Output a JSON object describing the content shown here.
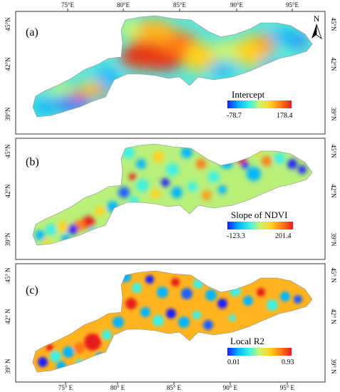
{
  "figure": {
    "x_ticks": [
      "75°E",
      "80°E",
      "85°E",
      "90°E",
      "95°E"
    ],
    "x_ticks_bottom": [
      "75° E",
      "80° E",
      "85° E",
      "90° E",
      "95° E"
    ],
    "lat_ticks_a": [
      "45°N",
      "42°N",
      "39°N"
    ],
    "lat_ticks_b": [
      "45°N",
      "42°N",
      "39°N"
    ],
    "lat_ticks_c": [
      "45° N",
      "42° N",
      "39° N"
    ],
    "north_label": "N"
  },
  "panels": [
    {
      "label": "(a)",
      "legend_title": "Intercept",
      "legend_min": "-78.7",
      "legend_max": "178.4"
    },
    {
      "label": "(b)",
      "legend_title": "Slope of NDVI",
      "legend_min": "-123.3",
      "legend_max": "201.4"
    },
    {
      "label": "(c)",
      "legend_title": "Local R2",
      "legend_min": "0.01",
      "legend_max": "0.93"
    }
  ],
  "colors": {
    "ramp": [
      "#1a1aff",
      "#00b4ff",
      "#3cf0e6",
      "#c8f56e",
      "#ffd21e",
      "#ff7814",
      "#e61e1e"
    ],
    "frame": "#333333"
  }
}
